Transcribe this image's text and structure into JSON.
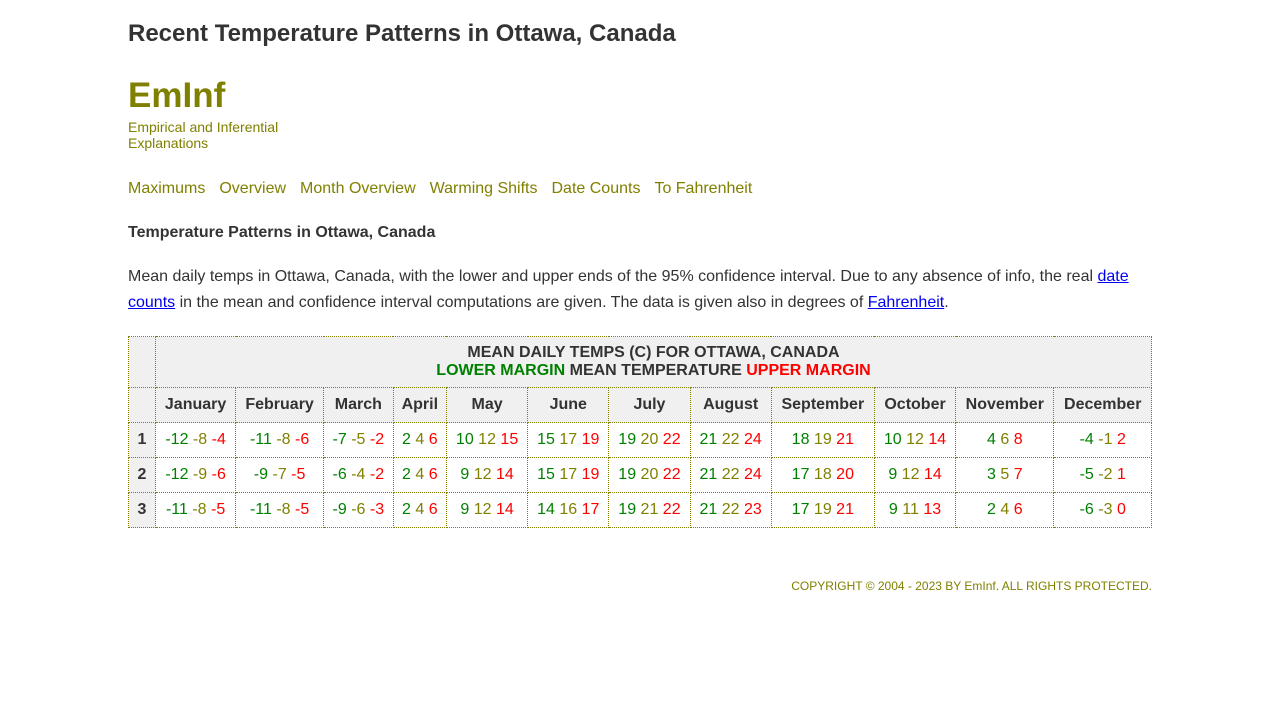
{
  "page_title": "Recent Temperature Patterns in Ottawa, Canada",
  "brand": {
    "name": "EmInf",
    "tagline": "Empirical and Inferential Explanations"
  },
  "nav": [
    "Maximums",
    "Overview",
    "Month Overview",
    "Warming Shifts",
    "Date Counts",
    "To Fahrenheit"
  ],
  "section_title": "Temperature Patterns in Ottawa, Canada",
  "description": {
    "part1": "Mean daily temps in Ottawa, Canada, with the lower and upper ends of the 95% confidence interval. Due to any absence of info, the real ",
    "link1": "date counts",
    "part2": " in the mean and confidence interval computations are given. The data is given also in degrees of ",
    "link2": "Fahrenheit",
    "part3": "."
  },
  "table": {
    "caption_line1": "MEAN DAILY TEMPS (C) FOR OTTAWA, CANADA",
    "caption_lower": "LOWER MARGIN",
    "caption_mean": "MEAN TEMPERATURE",
    "caption_upper": "UPPER MARGIN",
    "months": [
      "January",
      "February",
      "March",
      "April",
      "May",
      "June",
      "July",
      "August",
      "September",
      "October",
      "November",
      "December"
    ],
    "rows": [
      {
        "label": "1",
        "cells": [
          [
            "-12",
            "-8",
            "-4"
          ],
          [
            "-11",
            "-8",
            "-6"
          ],
          [
            "-7",
            "-5",
            "-2"
          ],
          [
            "2",
            "4",
            "6"
          ],
          [
            "10",
            "12",
            "15"
          ],
          [
            "15",
            "17",
            "19"
          ],
          [
            "19",
            "20",
            "22"
          ],
          [
            "21",
            "22",
            "24"
          ],
          [
            "18",
            "19",
            "21"
          ],
          [
            "10",
            "12",
            "14"
          ],
          [
            "4",
            "6",
            "8"
          ],
          [
            "-4",
            "-1",
            "2"
          ]
        ]
      },
      {
        "label": "2",
        "cells": [
          [
            "-12",
            "-9",
            "-6"
          ],
          [
            "-9",
            "-7",
            "-5"
          ],
          [
            "-6",
            "-4",
            "-2"
          ],
          [
            "2",
            "4",
            "6"
          ],
          [
            "9",
            "12",
            "14"
          ],
          [
            "15",
            "17",
            "19"
          ],
          [
            "19",
            "20",
            "22"
          ],
          [
            "21",
            "22",
            "24"
          ],
          [
            "17",
            "18",
            "20"
          ],
          [
            "9",
            "12",
            "14"
          ],
          [
            "3",
            "5",
            "7"
          ],
          [
            "-5",
            "-2",
            "1"
          ]
        ]
      },
      {
        "label": "3",
        "cells": [
          [
            "-11",
            "-8",
            "-5"
          ],
          [
            "-11",
            "-8",
            "-5"
          ],
          [
            "-9",
            "-6",
            "-3"
          ],
          [
            "2",
            "4",
            "6"
          ],
          [
            "9",
            "12",
            "14"
          ],
          [
            "14",
            "16",
            "17"
          ],
          [
            "19",
            "21",
            "22"
          ],
          [
            "21",
            "22",
            "23"
          ],
          [
            "17",
            "19",
            "21"
          ],
          [
            "9",
            "11",
            "13"
          ],
          [
            "2",
            "4",
            "6"
          ],
          [
            "-6",
            "-3",
            "0"
          ]
        ]
      }
    ]
  },
  "footer": "COPYRIGHT © 2004 - 2023 BY EmInf. ALL RIGHTS PROTECTED."
}
